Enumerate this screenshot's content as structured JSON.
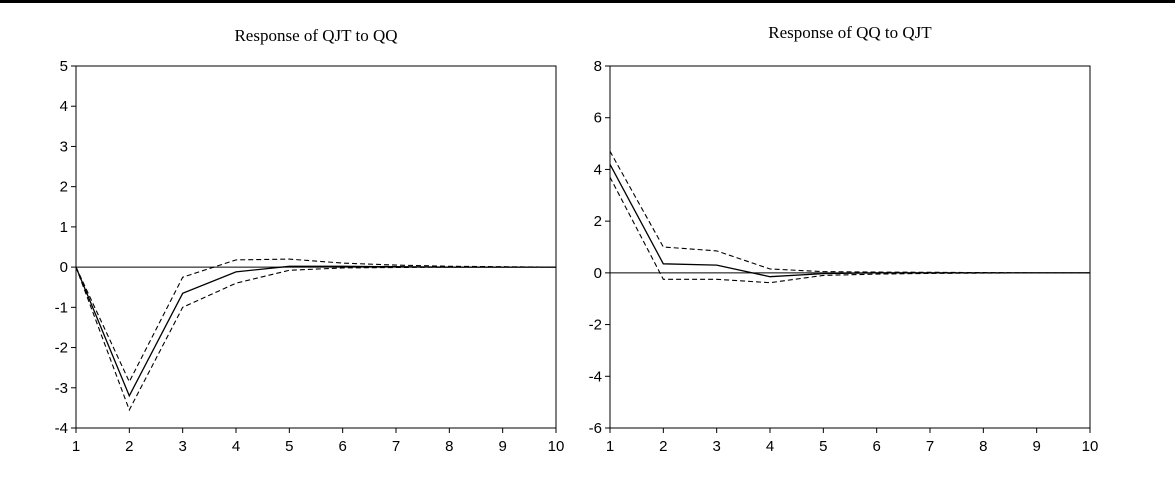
{
  "chart_data": [
    {
      "type": "line",
      "title": "Response of QJT to QQ",
      "x": [
        1,
        2,
        3,
        4,
        5,
        6,
        7,
        8,
        9,
        10
      ],
      "xlim": [
        1,
        10
      ],
      "ylim": [
        -4,
        5
      ],
      "yticks": [
        5,
        4,
        3,
        2,
        1,
        0,
        -1,
        -2,
        -3,
        -4
      ],
      "xticks": [
        1,
        2,
        3,
        4,
        5,
        6,
        7,
        8,
        9,
        10
      ],
      "zero_line": true,
      "series": [
        {
          "style": "solid",
          "values": [
            0,
            -3.2,
            -0.65,
            -0.12,
            0.02,
            0.02,
            0.01,
            0.0,
            0.0,
            0.0
          ]
        },
        {
          "style": "dashed",
          "values": [
            0,
            -2.85,
            -0.25,
            0.18,
            0.2,
            0.1,
            0.05,
            0.02,
            0.01,
            0.0
          ]
        },
        {
          "style": "dashed",
          "values": [
            0,
            -3.55,
            -1.0,
            -0.4,
            -0.08,
            -0.02,
            -0.01,
            0.0,
            0.0,
            0.0
          ]
        }
      ]
    },
    {
      "type": "line",
      "title": "Response of QQ to QJT",
      "x": [
        1,
        2,
        3,
        4,
        5,
        6,
        7,
        8,
        9,
        10
      ],
      "xlim": [
        1,
        10
      ],
      "ylim": [
        -6,
        8
      ],
      "yticks": [
        8,
        6,
        4,
        2,
        0,
        -2,
        -4,
        -6
      ],
      "xticks": [
        1,
        2,
        3,
        4,
        5,
        6,
        7,
        8,
        9,
        10
      ],
      "zero_line": true,
      "series": [
        {
          "style": "solid",
          "values": [
            4.2,
            0.35,
            0.3,
            -0.15,
            -0.03,
            0.0,
            0.0,
            0.0,
            0.0,
            0.0
          ]
        },
        {
          "style": "dashed",
          "values": [
            4.7,
            1.0,
            0.85,
            0.15,
            0.05,
            0.03,
            0.02,
            0.01,
            0.0,
            0.0
          ]
        },
        {
          "style": "dashed",
          "values": [
            3.7,
            -0.25,
            -0.25,
            -0.38,
            -0.1,
            -0.05,
            -0.02,
            -0.01,
            0.0,
            0.0
          ]
        }
      ]
    }
  ]
}
